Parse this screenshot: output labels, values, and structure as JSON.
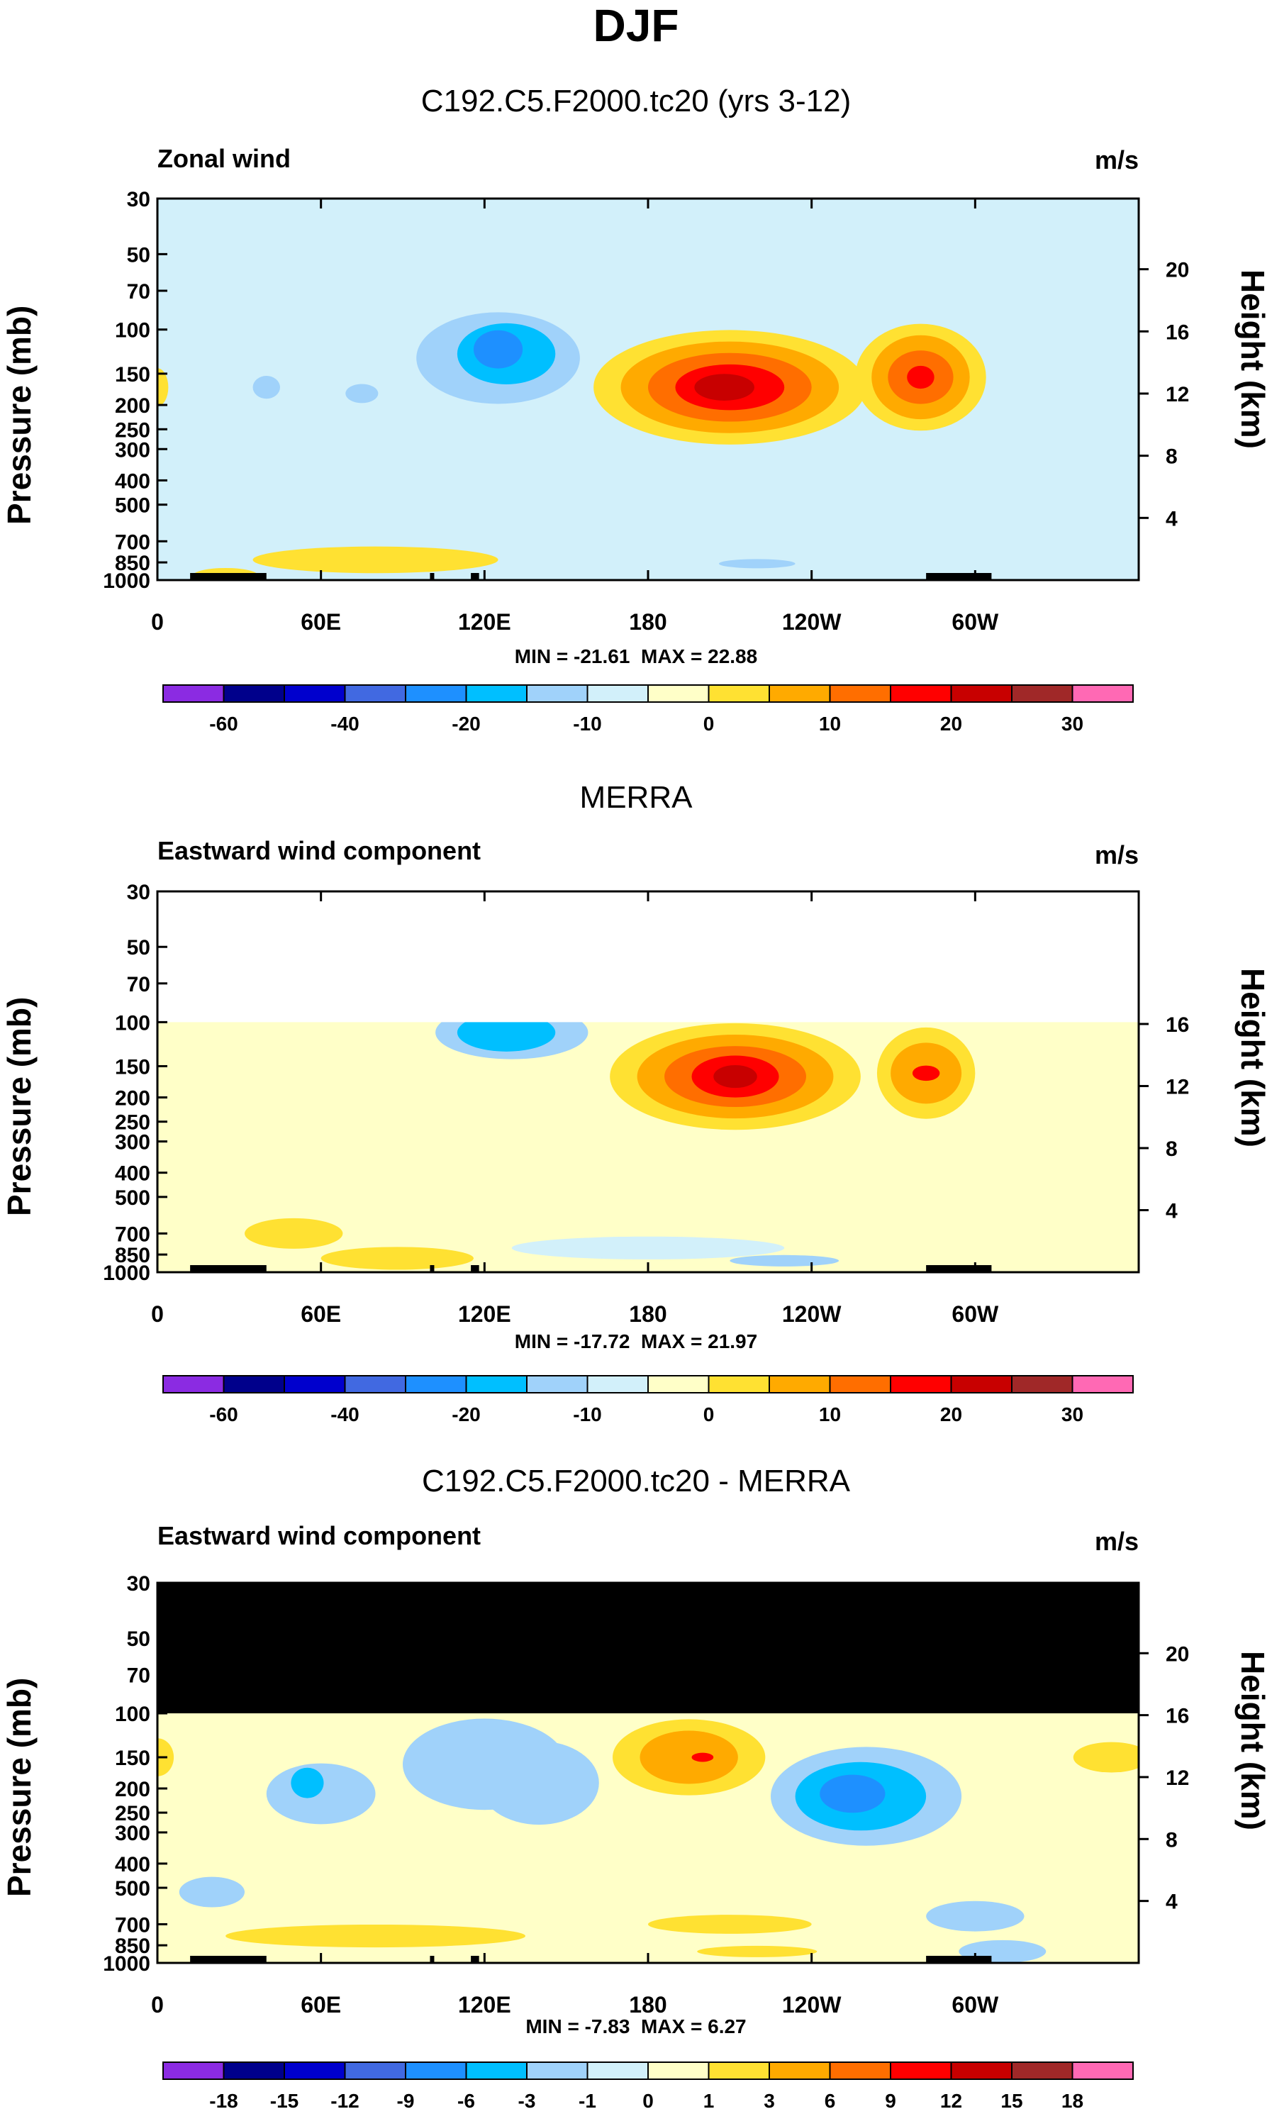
{
  "page": {
    "title": "DJF"
  },
  "contour_colors": [
    "#8b2be2",
    "#00008b",
    "#0000cd",
    "#4169e1",
    "#1e90ff",
    "#00bfff",
    "#a0d2fa",
    "#d2f0fa",
    "#ffffc8",
    "#ffe132",
    "#ffaa00",
    "#ff6e00",
    "#ff0000",
    "#c80000",
    "#a02828",
    "#ff69b4"
  ],
  "chart_data": [
    {
      "type": "heatmap",
      "title": "C192.C5.F2000.tc20 (yrs 3-12)",
      "variable": "Zonal wind",
      "units": "m/s",
      "ylabel_left": "Pressure (mb)",
      "ylabel_right": "Height (km)",
      "x_ticks": [
        "0",
        "60E",
        "120E",
        "180",
        "120W",
        "60W"
      ],
      "pressure_levels": [
        "30",
        "50",
        "70",
        "100",
        "150",
        "200",
        "250",
        "300",
        "400",
        "500",
        "700",
        "850",
        "1000"
      ],
      "height_ticks": [
        "20",
        "16",
        "12",
        "8",
        "4"
      ],
      "min": -21.61,
      "max": 22.88,
      "min_text": "MIN = -21.61",
      "max_text": "MAX =  22.88",
      "colorbar_labels": [
        "-60",
        "-40",
        "-20",
        "-10",
        "0",
        "10",
        "20",
        "30"
      ],
      "features": [
        {
          "lon": 210,
          "p": 170,
          "value": 22,
          "type": "jet core"
        },
        {
          "lon": 275,
          "p": 170,
          "value": 16,
          "type": "jet core"
        },
        {
          "lon": 130,
          "p": 125,
          "value": -18,
          "type": "easterly"
        },
        {
          "lon": 85,
          "p": 820,
          "value": 4,
          "type": "low-level westerly"
        }
      ]
    },
    {
      "type": "heatmap",
      "title": "MERRA",
      "variable": "Eastward wind component",
      "units": "m/s",
      "ylabel_left": "Pressure (mb)",
      "ylabel_right": "Height (km)",
      "x_ticks": [
        "0",
        "60E",
        "120E",
        "180",
        "120W",
        "60W"
      ],
      "pressure_levels": [
        "30",
        "50",
        "70",
        "100",
        "150",
        "200",
        "250",
        "300",
        "400",
        "500",
        "700",
        "850",
        "1000"
      ],
      "height_ticks": [
        "16",
        "12",
        "8",
        "4"
      ],
      "min": -17.72,
      "max": 21.97,
      "min_text": "MIN = -17.72",
      "max_text": "MAX =  21.97",
      "colorbar_labels": [
        "-60",
        "-40",
        "-20",
        "-10",
        "0",
        "10",
        "20",
        "30"
      ],
      "features": [
        {
          "lon": 215,
          "p": 165,
          "value": 21,
          "type": "jet core"
        },
        {
          "lon": 280,
          "p": 160,
          "value": 16,
          "type": "jet core"
        },
        {
          "lon": 130,
          "p": 110,
          "value": -17,
          "type": "easterly"
        }
      ]
    },
    {
      "type": "heatmap",
      "title": "C192.C5.F2000.tc20 - MERRA",
      "variable": "Eastward wind component",
      "units": "m/s",
      "ylabel_left": "Pressure (mb)",
      "ylabel_right": "Height (km)",
      "x_ticks": [
        "0",
        "60E",
        "120E",
        "180",
        "120W",
        "60W"
      ],
      "pressure_levels": [
        "30",
        "50",
        "70",
        "100",
        "150",
        "200",
        "250",
        "300",
        "400",
        "500",
        "700",
        "850",
        "1000"
      ],
      "height_ticks": [
        "20",
        "16",
        "12",
        "8",
        "4"
      ],
      "min": -7.83,
      "max": 6.27,
      "min_text": "MIN = -7.83",
      "max_text": "MAX =  6.27",
      "colorbar_labels": [
        "-18",
        "-15",
        "-12",
        "-9",
        "-6",
        "-3",
        "-1",
        "0",
        "1",
        "3",
        "6",
        "9",
        "12",
        "15",
        "18"
      ],
      "features": [
        {
          "lon": 255,
          "p": 210,
          "value": -7.5,
          "type": "difference minimum"
        },
        {
          "lon": 195,
          "p": 150,
          "value": 6,
          "type": "difference maximum"
        }
      ]
    }
  ]
}
